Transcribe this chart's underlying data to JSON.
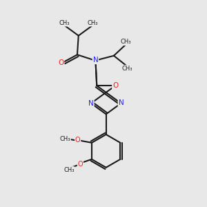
{
  "background_color": "#e8e8e8",
  "bond_color": "#1a1a1a",
  "nitrogen_color": "#2222ee",
  "oxygen_color": "#ee2222",
  "line_width": 1.5,
  "figsize": [
    3.0,
    3.0
  ],
  "dpi": 100,
  "xlim": [
    -2.5,
    2.5
  ],
  "ylim": [
    -4.2,
    3.8
  ]
}
